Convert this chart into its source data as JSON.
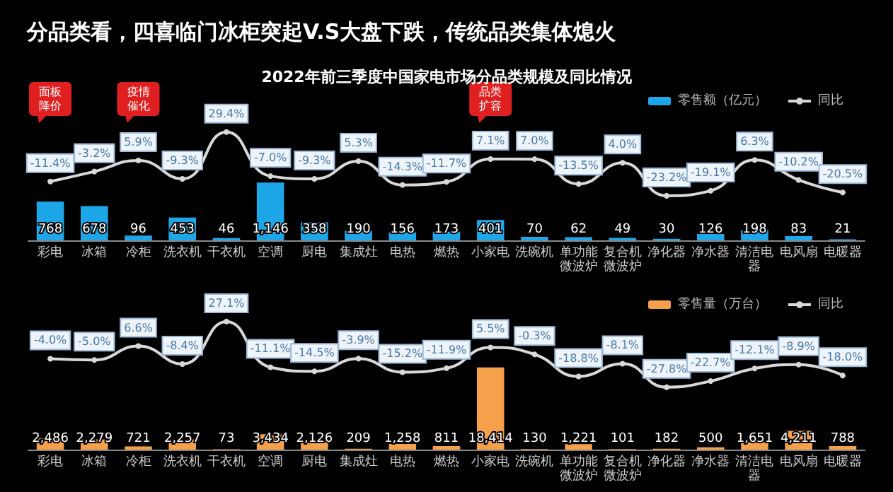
{
  "chart_data": [
    {
      "type": "bar",
      "title": "分品类看，四喜临门冰柜突起V.S大盘下跌，传统品类集体熄火",
      "subtitle": "2022年前三季度中国家电市场分品类规模及同比情况",
      "categories": [
        "彩电",
        "冰箱",
        "冷柜",
        "洗衣机",
        "干衣机",
        "空调",
        "厨电",
        "集成灶",
        "电热",
        "燃热",
        "小家电",
        "洗碗机",
        "单功能微波炉",
        "复合机微波炉",
        "净化器",
        "净水器",
        "清洁电器",
        "电风扇",
        "电暖器"
      ],
      "series": [
        {
          "name": "零售额（亿元）",
          "color": "#1ea7e8",
          "values": [
            768,
            678,
            96,
            453,
            46,
            1146,
            358,
            190,
            156,
            173,
            401,
            70,
            62,
            49,
            30,
            126,
            198,
            83,
            21
          ],
          "value_labels": [
            "768",
            "678",
            "96",
            "453",
            "46",
            "1,146",
            "358",
            "190",
            "156",
            "173",
            "401",
            "70",
            "62",
            "49",
            "30",
            "126",
            "198",
            "83",
            "21"
          ]
        },
        {
          "name": "同比",
          "type": "line",
          "axis": "y2",
          "color": "#d9d9d9",
          "values": [
            -11.4,
            -3.2,
            5.9,
            -9.3,
            29.4,
            -7.0,
            -9.3,
            5.3,
            -14.3,
            -11.7,
            7.1,
            7.0,
            -13.5,
            4.0,
            -23.2,
            -19.1,
            6.3,
            -10.2,
            -20.5
          ],
          "value_labels": [
            "-11.4%",
            "-3.2%",
            "5.9%",
            "-9.3%",
            "29.4%",
            "-7.0%",
            "-9.3%",
            "5.3%",
            "-14.3%",
            "-11.7%",
            "7.1%",
            "7.0%",
            "-13.5%",
            "4.0%",
            "-23.2%",
            "-19.1%",
            "6.3%",
            "-10.2%",
            "-20.5%"
          ]
        }
      ],
      "annotations": [
        "面板降价",
        "疫情催化",
        "品类扩容"
      ],
      "legend": "top right",
      "marker": "circle",
      "grid": false
    },
    {
      "type": "bar",
      "categories": [
        "彩电",
        "冰箱",
        "冷柜",
        "洗衣机",
        "干衣机",
        "空调",
        "厨电",
        "集成灶",
        "电热",
        "燃热",
        "小家电",
        "洗碗机",
        "单功能微波炉",
        "复合机微波炉",
        "净化器",
        "净水器",
        "清洁电器",
        "电风扇",
        "电暖器"
      ],
      "series": [
        {
          "name": "零售量（万台）",
          "color": "#f5a04a",
          "values": [
            2486,
            2279,
            721,
            2257,
            73,
            3434,
            2126,
            209,
            1258,
            811,
            18414,
            130,
            1221,
            101,
            182,
            500,
            1651,
            4211,
            788
          ],
          "value_labels": [
            "2,486",
            "2,279",
            "721",
            "2,257",
            "73",
            "3,434",
            "2,126",
            "209",
            "1,258",
            "811",
            "18,414",
            "130",
            "1,221",
            "101",
            "182",
            "500",
            "1,651",
            "4,211",
            "788"
          ]
        },
        {
          "name": "同比",
          "type": "line",
          "axis": "y2",
          "color": "#d9d9d9",
          "values": [
            -4.0,
            -5.0,
            6.6,
            -8.4,
            27.1,
            -11.1,
            -14.5,
            -3.9,
            -15.2,
            -11.9,
            5.5,
            -0.3,
            -18.8,
            -8.1,
            -27.8,
            -22.7,
            -12.1,
            -8.9,
            -18.0
          ],
          "value_labels": [
            "-4.0%",
            "-5.0%",
            "6.6%",
            "-8.4%",
            "27.1%",
            "-11.1%",
            "-14.5%",
            "-3.9%",
            "-15.2%",
            "-11.9%",
            "5.5%",
            "-0.3%",
            "-18.8%",
            "-8.1%",
            "-27.8%",
            "-22.7%",
            "-12.1%",
            "-8.9%",
            "-18.0%"
          ]
        }
      ],
      "legend": "top right",
      "marker": "circle",
      "grid": false
    }
  ]
}
